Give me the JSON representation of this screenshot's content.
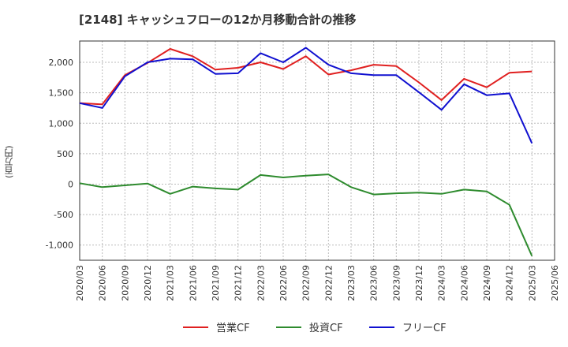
{
  "chart_data": {
    "type": "line",
    "title": "[2148]  キャッシュフローの12か月移動合計の推移",
    "ylabel": "(百万円)",
    "xlabel": "",
    "ylim": [
      -1250,
      2350
    ],
    "y_ticks": [
      -1000,
      -500,
      0,
      500,
      1000,
      1500,
      2000
    ],
    "y_tick_labels": [
      "-1,000",
      "-500",
      "0",
      "500",
      "1,000",
      "1,500",
      "2,000"
    ],
    "x_tick_labels": [
      "2020/03",
      "2020/06",
      "2020/09",
      "2020/12",
      "2021/03",
      "2021/06",
      "2021/09",
      "2021/12",
      "2022/03",
      "2022/06",
      "2022/09",
      "2022/12",
      "2023/03",
      "2023/06",
      "2023/09",
      "2023/12",
      "2024/03",
      "2024/06",
      "2024/09",
      "2024/12",
      "2025/03",
      "2025/06"
    ],
    "categories": [
      "2020/03",
      "2020/06",
      "2020/09",
      "2020/12",
      "2021/03",
      "2021/06",
      "2021/09",
      "2021/12",
      "2022/03",
      "2022/06",
      "2022/09",
      "2022/12",
      "2023/03",
      "2023/06",
      "2023/09",
      "2023/12",
      "2024/03",
      "2024/06",
      "2024/09",
      "2024/12",
      "2025/03"
    ],
    "series": [
      {
        "name": "営業CF",
        "color": "#e02020",
        "values": [
          1330,
          1310,
          1790,
          1990,
          2220,
          2100,
          1880,
          1910,
          2000,
          1890,
          2100,
          1800,
          1870,
          1960,
          1940,
          1670,
          1380,
          1730,
          1590,
          1830,
          1850
        ]
      },
      {
        "name": "投資CF",
        "color": "#2e8b2e",
        "values": [
          15,
          -50,
          -20,
          10,
          -160,
          -40,
          -70,
          -90,
          150,
          110,
          140,
          160,
          -50,
          -170,
          -150,
          -140,
          -160,
          -90,
          -120,
          -340,
          -1180
        ]
      },
      {
        "name": "フリーCF",
        "color": "#1010d0",
        "values": [
          1330,
          1250,
          1770,
          2000,
          2060,
          2050,
          1810,
          1820,
          2150,
          2000,
          2240,
          1960,
          1820,
          1790,
          1790,
          1510,
          1220,
          1640,
          1460,
          1490,
          670
        ]
      }
    ],
    "grid": true,
    "legend": "bottom-center"
  }
}
